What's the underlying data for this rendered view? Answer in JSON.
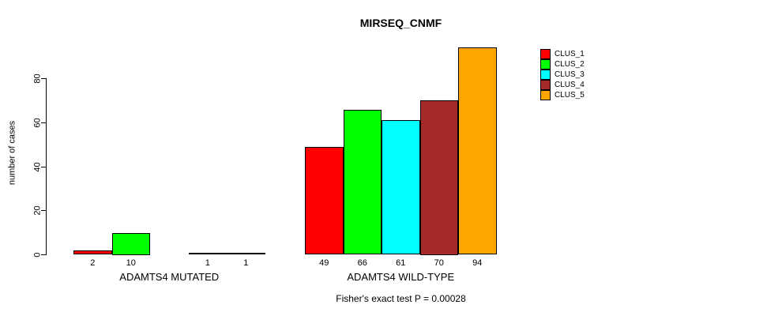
{
  "chart_data": {
    "type": "bar",
    "title": "MIRSEQ_CNMF",
    "ylabel": "number of cases",
    "xlabel": "",
    "ylim": [
      0,
      94
    ],
    "yticks": [
      0,
      20,
      40,
      60,
      80
    ],
    "grid": false,
    "legend_position": "top-right",
    "background_color": "#ffffff",
    "categories": [
      "ADAMTS4 MUTATED",
      "ADAMTS4 WILD-TYPE"
    ],
    "series": [
      {
        "name": "CLUS_1",
        "color": "#FF0000",
        "values": [
          2,
          49
        ]
      },
      {
        "name": "CLUS_2",
        "color": "#00FF00",
        "values": [
          10,
          66
        ]
      },
      {
        "name": "CLUS_3",
        "color": "#00FFFF",
        "values": [
          0,
          61
        ]
      },
      {
        "name": "CLUS_4",
        "color": "#A52A2A",
        "values": [
          1,
          70
        ]
      },
      {
        "name": "CLUS_5",
        "color": "#FFA500",
        "values": [
          1,
          94
        ]
      }
    ],
    "bar_value_labels": [
      [
        "2",
        "10",
        "",
        "1",
        "1"
      ],
      [
        "49",
        "66",
        "61",
        "70",
        "94"
      ]
    ],
    "annotation": "Fisher's exact test P = 0.00028"
  }
}
